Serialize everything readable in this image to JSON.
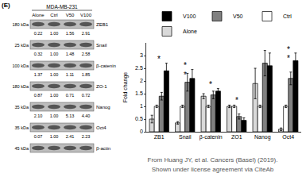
{
  "panel_label": "(E)",
  "blot": {
    "cell_line": "MDA-MB-231",
    "lanes": [
      "Alone",
      "Ctrl",
      "V50",
      "V100"
    ],
    "rows": [
      {
        "protein": "ZEB1",
        "kda": "180 kDa",
        "values": [
          "0.22",
          "1.00",
          "1.56",
          "2.91"
        ]
      },
      {
        "protein": "Snail",
        "kda": "25 kDa",
        "values": [
          "0.32",
          "1.00",
          "1.48",
          "2.58"
        ]
      },
      {
        "protein": "β-catenin",
        "kda": "100 kDa",
        "values": [
          "1.37",
          "1.00",
          "1.11",
          "1.85"
        ]
      },
      {
        "protein": "ZO-1",
        "kda": "180 kDa",
        "values": [
          "0.87",
          "1.00",
          "0.71",
          "0.72"
        ]
      },
      {
        "protein": "Nanog",
        "kda": "35 kDa",
        "values": [
          "2.10",
          "1.00",
          "5.13",
          "4.40"
        ]
      },
      {
        "protein": "Oct4",
        "kda": "35 kDa",
        "values": [
          "0.07",
          "1.00",
          "2.41",
          "2.23"
        ]
      },
      {
        "protein": "β-actin",
        "kda": "45 kDa"
      }
    ]
  },
  "chart_data": {
    "type": "bar",
    "y_label": "Fold change",
    "categories": [
      "ZB1",
      "Snail",
      "β-catenin",
      "ZO1",
      "Nanog",
      "Oct4"
    ],
    "series": [
      {
        "name": "Alone",
        "color": "#d9d9d9",
        "values": [
          0.5,
          0.35,
          1.4,
          1.0,
          1.9,
          0.1
        ],
        "errors": [
          0.15,
          0.05,
          0.1,
          0.05,
          0.6,
          0.05
        ]
      },
      {
        "name": "Ctrl",
        "color": "#ffffff",
        "values": [
          1.0,
          1.0,
          1.0,
          1.0,
          1.0,
          1.0
        ],
        "errors": [
          0.05,
          0.05,
          0.05,
          0.05,
          0.05,
          0.05
        ]
      },
      {
        "name": "V50",
        "color": "#808080",
        "values": [
          1.4,
          1.95,
          1.45,
          0.6,
          2.7,
          2.1
        ],
        "errors": [
          0.15,
          0.35,
          0.15,
          0.1,
          0.5,
          0.25
        ]
      },
      {
        "name": "V100",
        "color": "#000000",
        "values": [
          2.4,
          2.1,
          1.6,
          0.45,
          2.6,
          2.8
        ],
        "errors": [
          0.3,
          0.35,
          0.1,
          0.1,
          0.5,
          0.3
        ]
      }
    ],
    "ylim": [
      0,
      3.5
    ],
    "yticks": [
      0,
      0.5,
      1,
      1.5,
      2,
      2.5,
      3
    ],
    "grid": false,
    "legend": "top",
    "annotations": [
      {
        "text": "*",
        "category": "ZB1",
        "y": 2.85
      },
      {
        "text": "*",
        "category": "Snail",
        "y": 2.6
      },
      {
        "text": "*",
        "category": "Snail",
        "y": 2.25
      },
      {
        "text": "*",
        "category": "β-catenin",
        "y": 1.85
      },
      {
        "text": "*",
        "category": "ZO1",
        "y": 1.25
      },
      {
        "text": "*",
        "category": "Oct4",
        "y": 3.25
      },
      {
        "text": "*",
        "category": "Oct4",
        "y": 2.9
      }
    ]
  },
  "credit": [
    "From Huang JY, et al. Cancers (Basel) (2019).",
    "Shown under license agreement via CiteAb"
  ]
}
